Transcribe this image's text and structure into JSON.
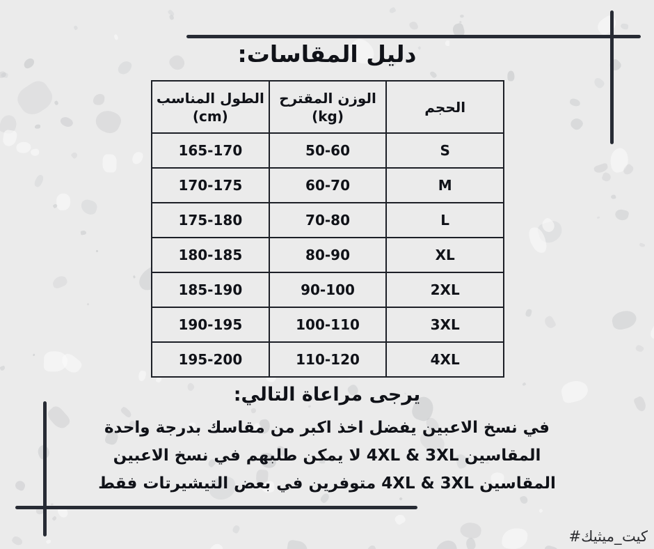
{
  "title": "دليل المقاسات:",
  "table": {
    "headers": [
      {
        "line1": "الحجم",
        "line2": ""
      },
      {
        "line1": "الوزن المقترح",
        "line2": "(kg)"
      },
      {
        "line1": "الطول المناسب",
        "line2": "(cm)"
      }
    ],
    "rows": [
      {
        "size": "S",
        "weight": "50-60",
        "height": "165-170"
      },
      {
        "size": "M",
        "weight": "60-70",
        "height": "170-175"
      },
      {
        "size": "L",
        "weight": "70-80",
        "height": "175-180"
      },
      {
        "size": "XL",
        "weight": "80-90",
        "height": "180-185"
      },
      {
        "size": "2XL",
        "weight": "90-100",
        "height": "185-190"
      },
      {
        "size": "3XL",
        "weight": "100-110",
        "height": "190-195"
      },
      {
        "size": "4XL",
        "weight": "110-120",
        "height": "195-200"
      }
    ]
  },
  "notes": {
    "heading": "يرجى مراعاة التالي:",
    "lines": [
      "في نسخ الاعبين يفضل اخذ اكبر من مقاسك بدرجة واحدة",
      "المقاسين 4XL & 3XL لا يمكن طلبهم في نسخ الاعبين",
      "المقاسين 4XL & 3XL متوفرين في بعض التيشيرتات فقط"
    ]
  },
  "footer": {
    "hashtag": "#ميثيك_كيت",
    "hashtag_parts": [
      "#ميثيك",
      "_",
      "كيت"
    ]
  },
  "colors": {
    "background": "#ebebeb",
    "ink": "#14161b",
    "corner_marks": "#272b34",
    "table_border": "#1c1f26"
  }
}
